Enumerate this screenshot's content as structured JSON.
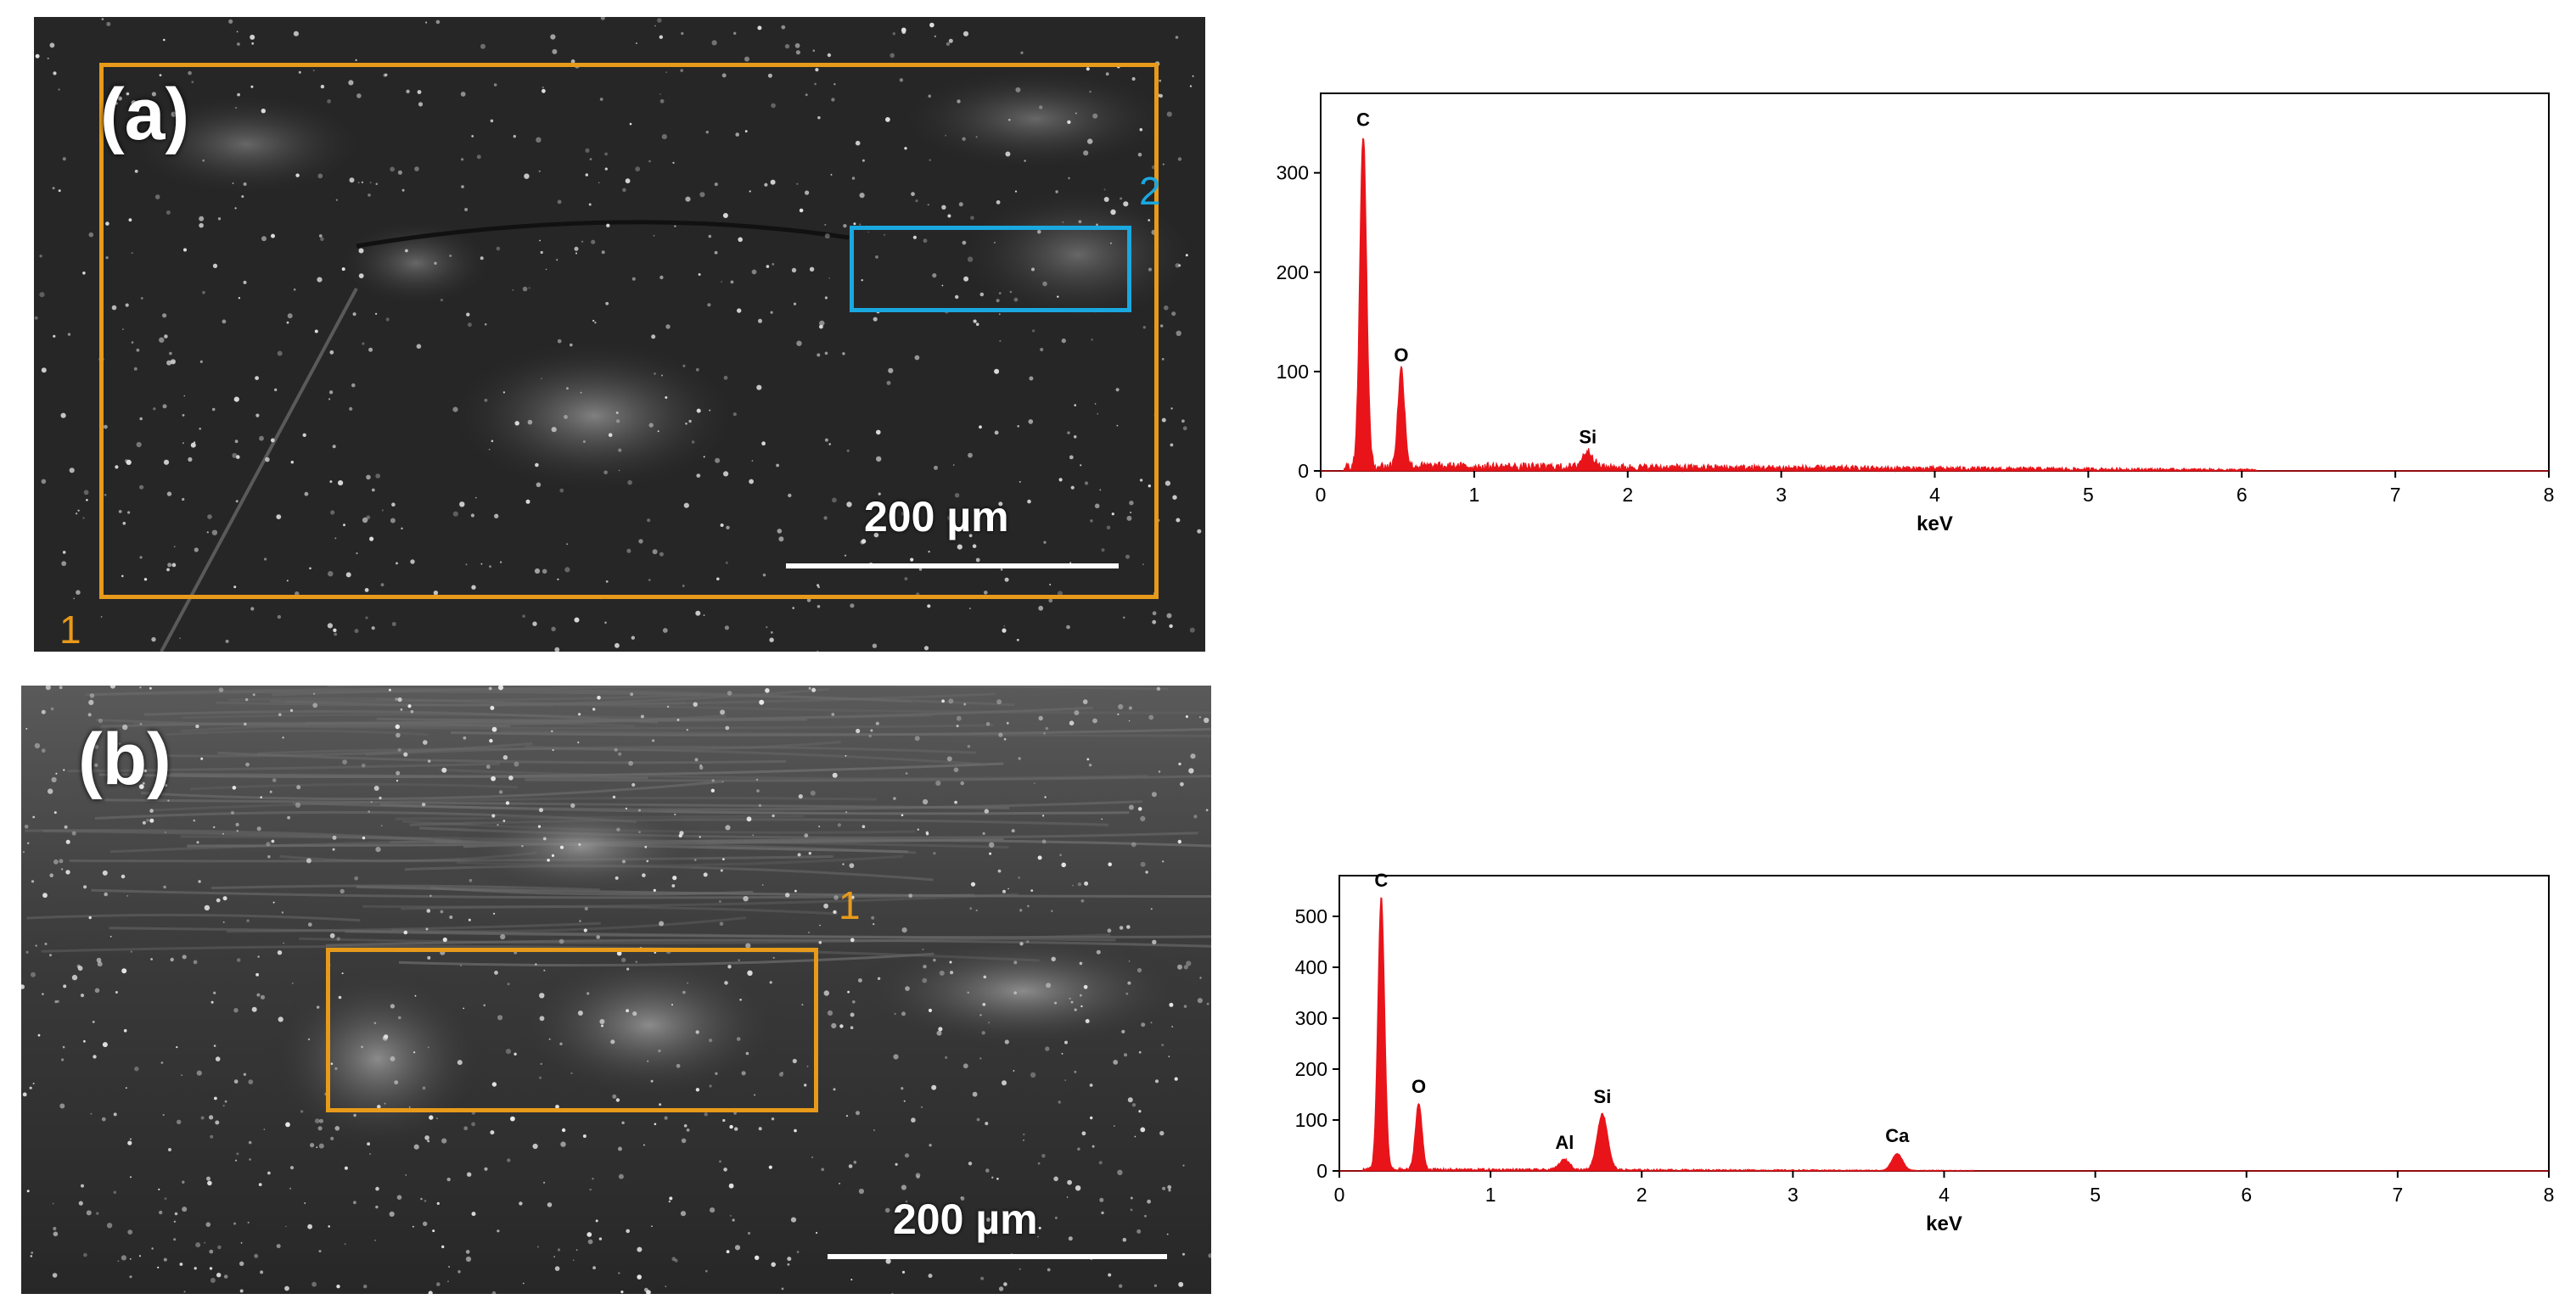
{
  "colors": {
    "spectrum": "#e8141a",
    "roi_orange": "#e89a1a",
    "roi_blue": "#1aa8e0",
    "axis": "#000000"
  },
  "panels": [
    {
      "label": "(a)",
      "scale_bar_text": "200 µm",
      "regions": [
        {
          "number": "1",
          "color": "#e89a1a"
        },
        {
          "number": "2",
          "color": "#1aa8e0"
        }
      ]
    },
    {
      "label": "(b)",
      "scale_bar_text": "200 µm",
      "regions": [
        {
          "number": "1",
          "color": "#e89a1a"
        }
      ]
    }
  ],
  "chart_data": [
    {
      "type": "line",
      "xlabel": "keV",
      "ylabel": "",
      "xlim": [
        0,
        8
      ],
      "ylim": [
        0,
        380
      ],
      "xticks": [
        0,
        1,
        2,
        3,
        4,
        5,
        6,
        7,
        8
      ],
      "yticks": [
        0,
        100,
        200,
        300
      ],
      "peaks": [
        {
          "label": "C",
          "x": 0.277,
          "y": 335
        },
        {
          "label": "O",
          "x": 0.525,
          "y": 98
        },
        {
          "label": "Si",
          "x": 1.74,
          "y": 16
        }
      ],
      "noise_level": 5,
      "noise_until": 6.1
    },
    {
      "type": "line",
      "xlabel": "keV",
      "ylabel": "",
      "xlim": [
        0,
        8
      ],
      "ylim": [
        0,
        580
      ],
      "xticks": [
        0,
        1,
        2,
        3,
        4,
        5,
        6,
        7,
        8
      ],
      "yticks": [
        0,
        100,
        200,
        300,
        400,
        500
      ],
      "peaks": [
        {
          "label": "C",
          "x": 0.277,
          "y": 535
        },
        {
          "label": "O",
          "x": 0.525,
          "y": 130
        },
        {
          "label": "Al",
          "x": 1.49,
          "y": 20
        },
        {
          "label": "Si",
          "x": 1.74,
          "y": 110
        },
        {
          "label": "Ca",
          "x": 3.69,
          "y": 33
        }
      ],
      "noise_level": 3,
      "noise_until": 4.2
    }
  ]
}
